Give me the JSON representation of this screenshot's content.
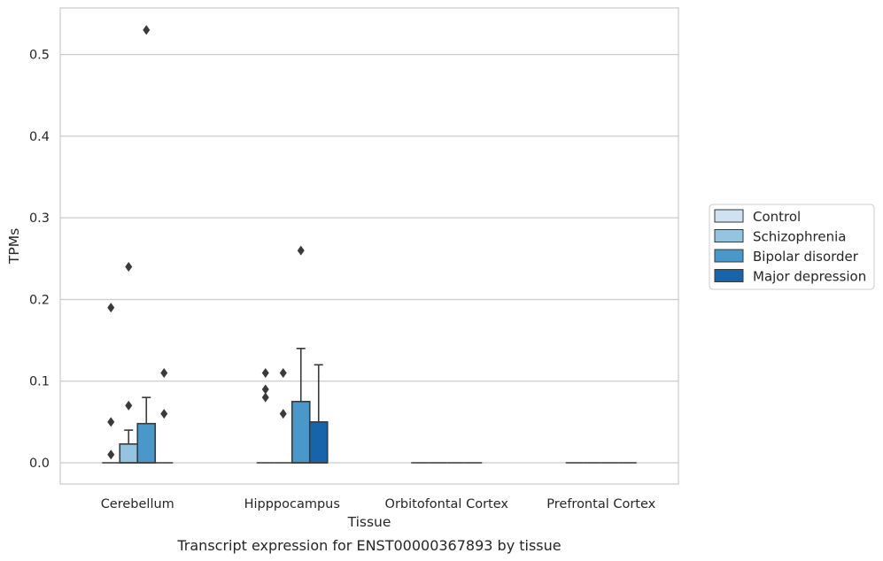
{
  "caption": "Transcript expression for ENST00000367893 by tissue",
  "colors": {
    "Control": "#d0e1f2",
    "Schizophrenia": "#94c4df",
    "Bipolar disorder": "#4a98c9",
    "Major depression": "#1764ab",
    "edge": "#3a3a3a",
    "grid": "#cccccc"
  },
  "chart_data": {
    "type": "box",
    "title": "",
    "xlabel": "Tissue",
    "ylabel": "TPMs",
    "ylim": [
      -0.026,
      0.557
    ],
    "yticks": [
      0.0,
      0.1,
      0.2,
      0.3,
      0.4,
      0.5
    ],
    "ytick_labels": [
      "0.0",
      "0.1",
      "0.2",
      "0.3",
      "0.4",
      "0.5"
    ],
    "grid": true,
    "legend_position": "right",
    "categories": [
      "Cerebellum",
      "Hipppocampus",
      "Orbitofontal Cortex",
      "Prefrontal Cortex"
    ],
    "series": [
      {
        "name": "Control",
        "boxes": [
          {
            "q1": 0,
            "median": 0,
            "q3": 0,
            "whisker_low": 0,
            "whisker_high": 0,
            "outliers": [
              0.01,
              0.05,
              0.19
            ]
          },
          {
            "q1": 0,
            "median": 0,
            "q3": 0,
            "whisker_low": 0,
            "whisker_high": 0,
            "outliers": [
              0.08,
              0.09,
              0.11
            ]
          },
          {
            "q1": 0,
            "median": 0,
            "q3": 0,
            "whisker_low": 0,
            "whisker_high": 0,
            "outliers": []
          },
          {
            "q1": 0,
            "median": 0,
            "q3": 0,
            "whisker_low": 0,
            "whisker_high": 0,
            "outliers": []
          }
        ]
      },
      {
        "name": "Schizophrenia",
        "boxes": [
          {
            "q1": 0,
            "median": 0,
            "q3": 0.023,
            "whisker_low": 0,
            "whisker_high": 0.04,
            "outliers": [
              0.07,
              0.24
            ]
          },
          {
            "q1": 0,
            "median": 0,
            "q3": 0,
            "whisker_low": 0,
            "whisker_high": 0,
            "outliers": [
              0.06,
              0.11
            ]
          },
          {
            "q1": 0,
            "median": 0,
            "q3": 0,
            "whisker_low": 0,
            "whisker_high": 0,
            "outliers": []
          },
          {
            "q1": 0,
            "median": 0,
            "q3": 0,
            "whisker_low": 0,
            "whisker_high": 0,
            "outliers": []
          }
        ]
      },
      {
        "name": "Bipolar disorder",
        "boxes": [
          {
            "q1": 0,
            "median": 0,
            "q3": 0.048,
            "whisker_low": 0,
            "whisker_high": 0.08,
            "outliers": [
              0.53
            ]
          },
          {
            "q1": 0,
            "median": 0,
            "q3": 0.075,
            "whisker_low": 0,
            "whisker_high": 0.14,
            "outliers": [
              0.26
            ]
          },
          {
            "q1": 0,
            "median": 0,
            "q3": 0,
            "whisker_low": 0,
            "whisker_high": 0,
            "outliers": []
          },
          {
            "q1": 0,
            "median": 0,
            "q3": 0,
            "whisker_low": 0,
            "whisker_high": 0,
            "outliers": []
          }
        ]
      },
      {
        "name": "Major depression",
        "boxes": [
          {
            "q1": 0,
            "median": 0,
            "q3": 0,
            "whisker_low": 0,
            "whisker_high": 0,
            "outliers": [
              0.06,
              0.11
            ]
          },
          {
            "q1": 0,
            "median": 0,
            "q3": 0.05,
            "whisker_low": 0,
            "whisker_high": 0.12,
            "outliers": []
          },
          {
            "q1": 0,
            "median": 0,
            "q3": 0,
            "whisker_low": 0,
            "whisker_high": 0,
            "outliers": []
          },
          {
            "q1": 0,
            "median": 0,
            "q3": 0,
            "whisker_low": 0,
            "whisker_high": 0,
            "outliers": []
          }
        ]
      }
    ]
  }
}
